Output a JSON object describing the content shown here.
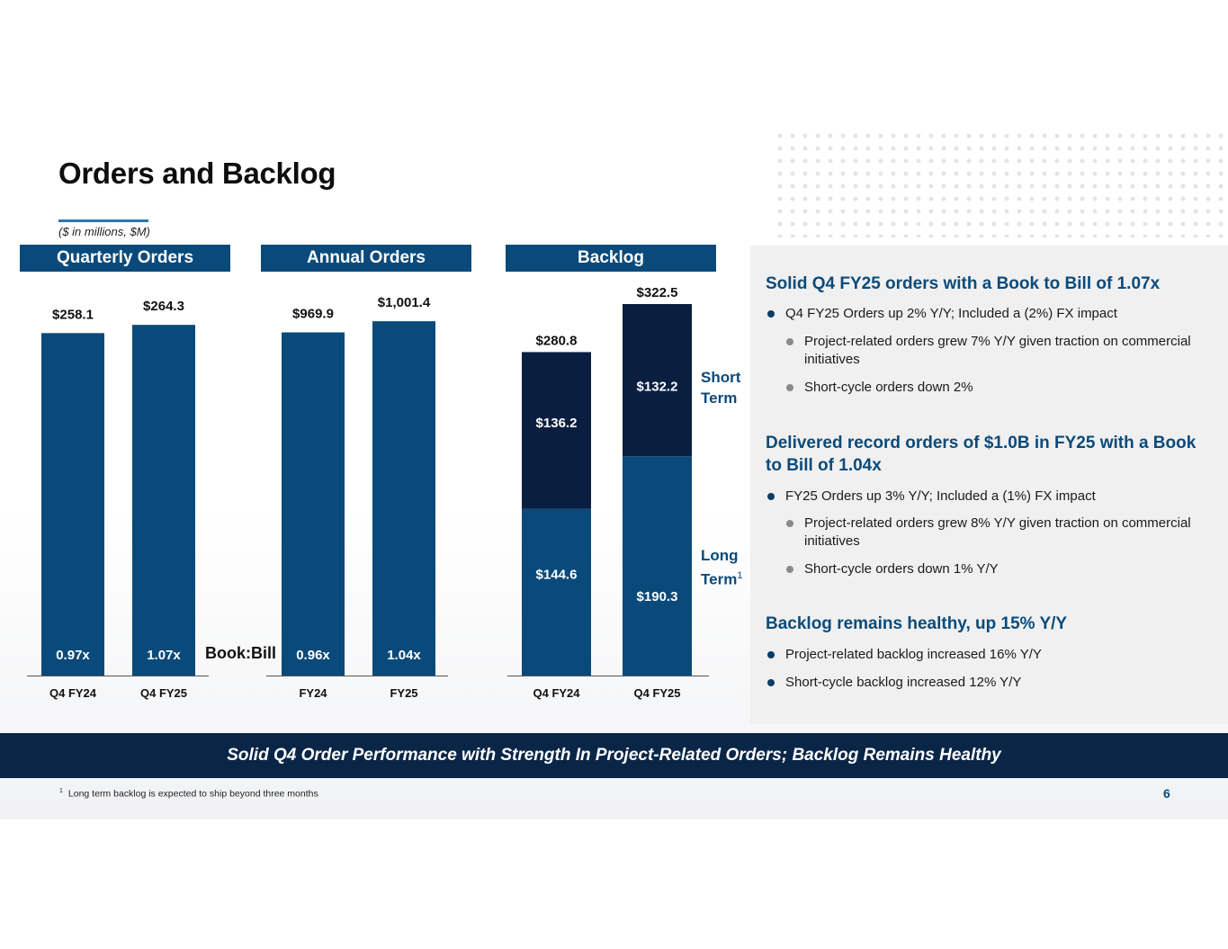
{
  "title": "Orders and Backlog",
  "units": "($ in millions, $M)",
  "sections": {
    "quarterly": "Quarterly Orders",
    "annual": "Annual Orders",
    "backlog": "Backlog"
  },
  "chart_data": [
    {
      "type": "bar",
      "title": "Quarterly Orders",
      "categories": [
        "Q4 FY24",
        "Q4 FY25"
      ],
      "values": [
        258.1,
        264.3
      ],
      "value_labels": [
        "$258.1",
        "$264.3"
      ],
      "book_to_bill": [
        "0.97x",
        "1.07x"
      ],
      "ylim": [
        0,
        280
      ]
    },
    {
      "type": "bar",
      "title": "Annual Orders",
      "categories": [
        "FY24",
        "FY25"
      ],
      "values": [
        969.9,
        1001.4
      ],
      "value_labels": [
        "$969.9",
        "$1,001.4"
      ],
      "book_to_bill": [
        "0.96x",
        "1.04x"
      ],
      "ylim": [
        0,
        1050
      ]
    },
    {
      "type": "bar",
      "stacked": true,
      "title": "Backlog",
      "categories": [
        "Q4 FY24",
        "Q4 FY25"
      ],
      "totals": [
        280.8,
        322.5
      ],
      "total_labels": [
        "$280.8",
        "$322.5"
      ],
      "series": [
        {
          "name": "Long Term",
          "values": [
            144.6,
            190.3
          ],
          "labels": [
            "$144.6",
            "$190.3"
          ],
          "color": "#0a4a7a"
        },
        {
          "name": "Short Term",
          "values": [
            136.2,
            132.2
          ],
          "labels": [
            "$136.2",
            "$132.2"
          ],
          "color": "#0a1f40"
        }
      ],
      "ylim": [
        0,
        322.5
      ]
    }
  ],
  "book_bill_label": "Book:Bill",
  "legend": {
    "short_line1": "Short",
    "short_line2": "Term",
    "long_line1": "Long",
    "long_line2": "Term",
    "long_sup": "1"
  },
  "panel": {
    "h1": "Solid Q4 FY25 orders with a Book to Bill of 1.07x",
    "b1": "Q4 FY25 Orders up 2% Y/Y; Included a (2%) FX impact",
    "b1a": "Project-related orders grew 7% Y/Y given traction on commercial initiatives",
    "b1b": "Short-cycle orders down 2%",
    "h2": "Delivered record orders of $1.0B in FY25 with a Book to Bill of 1.04x",
    "b2": "FY25 Orders up 3% Y/Y; Included a (1%) FX impact",
    "b2a": "Project-related orders grew 8% Y/Y given traction on commercial initiatives",
    "b2b": "Short-cycle orders down 1% Y/Y",
    "h3": "Backlog remains healthy, up 15% Y/Y",
    "b3": "Project-related backlog increased 16% Y/Y",
    "b3b": "Short-cycle backlog increased 12% Y/Y"
  },
  "banner": "Solid Q4 Order Performance with Strength In Project-Related Orders; Backlog Remains Healthy",
  "footnote": {
    "marker": "1",
    "text": "Long term backlog is expected to ship beyond three months"
  },
  "page_number": "6",
  "colors": {
    "bar": "#0a4a7a",
    "short_term": "#0a1f40",
    "banner": "#0a2647",
    "accent": "#0a4a7a"
  }
}
